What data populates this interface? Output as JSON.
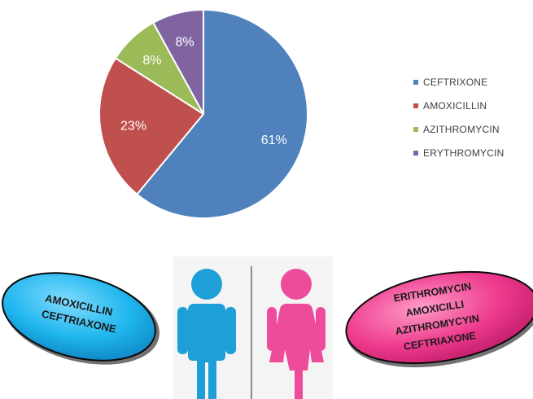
{
  "chart_data": {
    "type": "pie",
    "slices": [
      {
        "name": "CEFTRIXONE",
        "value": 61,
        "label": "61%",
        "color": "#4F81BD"
      },
      {
        "name": "AMOXICILLIN",
        "value": 23,
        "label": "23%",
        "color": "#C0504D"
      },
      {
        "name": "AZITHROMYCIN",
        "value": 8,
        "label": "8%",
        "color": "#9BBB59"
      },
      {
        "name": "ERYTHROMYCIN",
        "value": 8,
        "label": "8%",
        "color": "#8064A2"
      }
    ],
    "legend_position": "right"
  },
  "male_oval": {
    "lines": [
      "AMOXICILLIN",
      "CEFTRIAXONE"
    ],
    "color": "#1FB6EE"
  },
  "female_oval": {
    "lines": [
      "ERITHROMYCIN",
      "AMOXICILLI",
      "AZITHROMYCYIN",
      "CEFTRIAXONE"
    ],
    "color": "#EE3A8C"
  },
  "icons": {
    "male": "male-person-icon",
    "female": "female-person-icon",
    "male_color": "#1E9FD8",
    "female_color": "#EC4C9A"
  }
}
